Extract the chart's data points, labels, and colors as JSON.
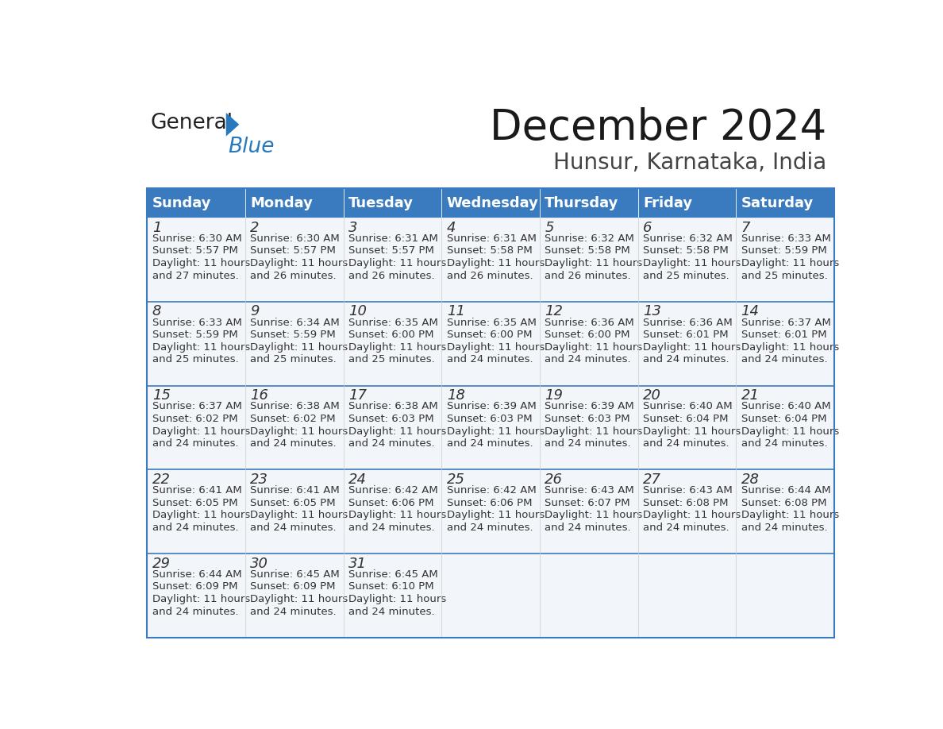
{
  "title": "December 2024",
  "subtitle": "Hunsur, Karnataka, India",
  "header_color": "#3a7bbf",
  "header_text_color": "#ffffff",
  "day_names": [
    "Sunday",
    "Monday",
    "Tuesday",
    "Wednesday",
    "Thursday",
    "Friday",
    "Saturday"
  ],
  "weeks": [
    [
      {
        "day": 1,
        "sunrise": "6:30 AM",
        "sunset": "5:57 PM",
        "daylight": "11 hours and 27 minutes."
      },
      {
        "day": 2,
        "sunrise": "6:30 AM",
        "sunset": "5:57 PM",
        "daylight": "11 hours and 26 minutes."
      },
      {
        "day": 3,
        "sunrise": "6:31 AM",
        "sunset": "5:57 PM",
        "daylight": "11 hours and 26 minutes."
      },
      {
        "day": 4,
        "sunrise": "6:31 AM",
        "sunset": "5:58 PM",
        "daylight": "11 hours and 26 minutes."
      },
      {
        "day": 5,
        "sunrise": "6:32 AM",
        "sunset": "5:58 PM",
        "daylight": "11 hours and 26 minutes."
      },
      {
        "day": 6,
        "sunrise": "6:32 AM",
        "sunset": "5:58 PM",
        "daylight": "11 hours and 25 minutes."
      },
      {
        "day": 7,
        "sunrise": "6:33 AM",
        "sunset": "5:59 PM",
        "daylight": "11 hours and 25 minutes."
      }
    ],
    [
      {
        "day": 8,
        "sunrise": "6:33 AM",
        "sunset": "5:59 PM",
        "daylight": "11 hours and 25 minutes."
      },
      {
        "day": 9,
        "sunrise": "6:34 AM",
        "sunset": "5:59 PM",
        "daylight": "11 hours and 25 minutes."
      },
      {
        "day": 10,
        "sunrise": "6:35 AM",
        "sunset": "6:00 PM",
        "daylight": "11 hours and 25 minutes."
      },
      {
        "day": 11,
        "sunrise": "6:35 AM",
        "sunset": "6:00 PM",
        "daylight": "11 hours and 24 minutes."
      },
      {
        "day": 12,
        "sunrise": "6:36 AM",
        "sunset": "6:00 PM",
        "daylight": "11 hours and 24 minutes."
      },
      {
        "day": 13,
        "sunrise": "6:36 AM",
        "sunset": "6:01 PM",
        "daylight": "11 hours and 24 minutes."
      },
      {
        "day": 14,
        "sunrise": "6:37 AM",
        "sunset": "6:01 PM",
        "daylight": "11 hours and 24 minutes."
      }
    ],
    [
      {
        "day": 15,
        "sunrise": "6:37 AM",
        "sunset": "6:02 PM",
        "daylight": "11 hours and 24 minutes."
      },
      {
        "day": 16,
        "sunrise": "6:38 AM",
        "sunset": "6:02 PM",
        "daylight": "11 hours and 24 minutes."
      },
      {
        "day": 17,
        "sunrise": "6:38 AM",
        "sunset": "6:03 PM",
        "daylight": "11 hours and 24 minutes."
      },
      {
        "day": 18,
        "sunrise": "6:39 AM",
        "sunset": "6:03 PM",
        "daylight": "11 hours and 24 minutes."
      },
      {
        "day": 19,
        "sunrise": "6:39 AM",
        "sunset": "6:03 PM",
        "daylight": "11 hours and 24 minutes."
      },
      {
        "day": 20,
        "sunrise": "6:40 AM",
        "sunset": "6:04 PM",
        "daylight": "11 hours and 24 minutes."
      },
      {
        "day": 21,
        "sunrise": "6:40 AM",
        "sunset": "6:04 PM",
        "daylight": "11 hours and 24 minutes."
      }
    ],
    [
      {
        "day": 22,
        "sunrise": "6:41 AM",
        "sunset": "6:05 PM",
        "daylight": "11 hours and 24 minutes."
      },
      {
        "day": 23,
        "sunrise": "6:41 AM",
        "sunset": "6:05 PM",
        "daylight": "11 hours and 24 minutes."
      },
      {
        "day": 24,
        "sunrise": "6:42 AM",
        "sunset": "6:06 PM",
        "daylight": "11 hours and 24 minutes."
      },
      {
        "day": 25,
        "sunrise": "6:42 AM",
        "sunset": "6:06 PM",
        "daylight": "11 hours and 24 minutes."
      },
      {
        "day": 26,
        "sunrise": "6:43 AM",
        "sunset": "6:07 PM",
        "daylight": "11 hours and 24 minutes."
      },
      {
        "day": 27,
        "sunrise": "6:43 AM",
        "sunset": "6:08 PM",
        "daylight": "11 hours and 24 minutes."
      },
      {
        "day": 28,
        "sunrise": "6:44 AM",
        "sunset": "6:08 PM",
        "daylight": "11 hours and 24 minutes."
      }
    ],
    [
      {
        "day": 29,
        "sunrise": "6:44 AM",
        "sunset": "6:09 PM",
        "daylight": "11 hours and 24 minutes."
      },
      {
        "day": 30,
        "sunrise": "6:45 AM",
        "sunset": "6:09 PM",
        "daylight": "11 hours and 24 minutes."
      },
      {
        "day": 31,
        "sunrise": "6:45 AM",
        "sunset": "6:10 PM",
        "daylight": "11 hours and 24 minutes."
      },
      null,
      null,
      null,
      null
    ]
  ],
  "title_fontsize": 38,
  "subtitle_fontsize": 20,
  "header_fontsize": 13,
  "day_num_fontsize": 13,
  "cell_text_fontsize": 9.5,
  "border_color": "#3a7bbf",
  "separator_line_color": "#3a7bbf",
  "cell_bg_color": "#f2f6fa",
  "logo_general_color": "#222222",
  "logo_blue_color": "#2878be",
  "logo_triangle_color": "#2878be"
}
